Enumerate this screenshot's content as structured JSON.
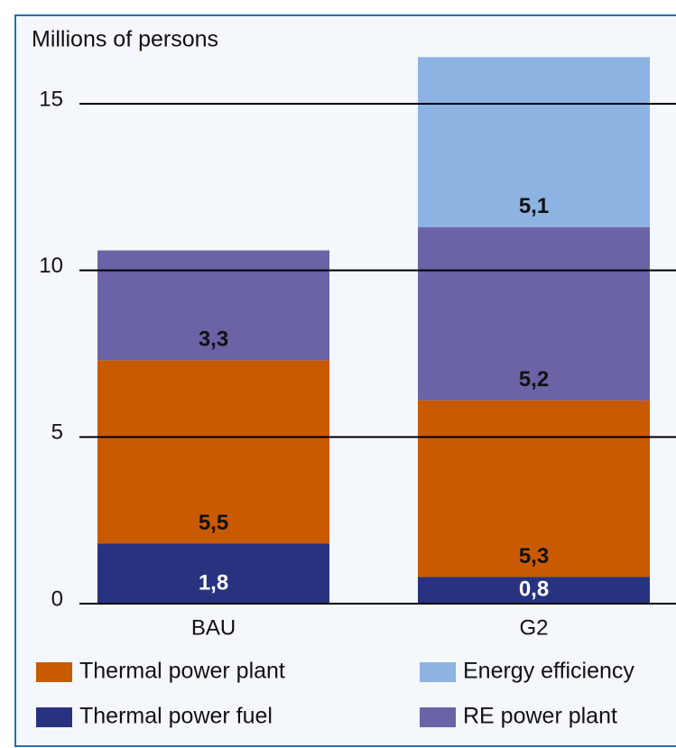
{
  "chart_data": {
    "type": "stacked_bar",
    "ylabel": "Millions of persons",
    "categories": [
      "BAU",
      "G2"
    ],
    "series": [
      {
        "name": "Thermal power fuel",
        "color": "#27337f",
        "label_color": "#ffffff",
        "values": [
          1.8,
          0.8
        ],
        "value_labels": [
          "1,8",
          "0,8"
        ]
      },
      {
        "name": "Thermal power plant",
        "color": "#c95a00",
        "label_color": "#111111",
        "values": [
          5.5,
          5.3
        ],
        "value_labels": [
          "5,5",
          "5,3"
        ]
      },
      {
        "name": "RE power plant",
        "color": "#6a63a6",
        "label_color": "#111111",
        "values": [
          3.3,
          5.2
        ],
        "value_labels": [
          "3,3",
          "5,2"
        ]
      },
      {
        "name": "Energy efficiency",
        "color": "#8db3e2",
        "label_color": "#111111",
        "values": [
          null,
          5.1
        ],
        "value_labels": [
          null,
          "5,1"
        ]
      }
    ],
    "ylim": [
      0,
      15
    ],
    "yticks": [
      0,
      5,
      10,
      15
    ],
    "grid": true
  }
}
